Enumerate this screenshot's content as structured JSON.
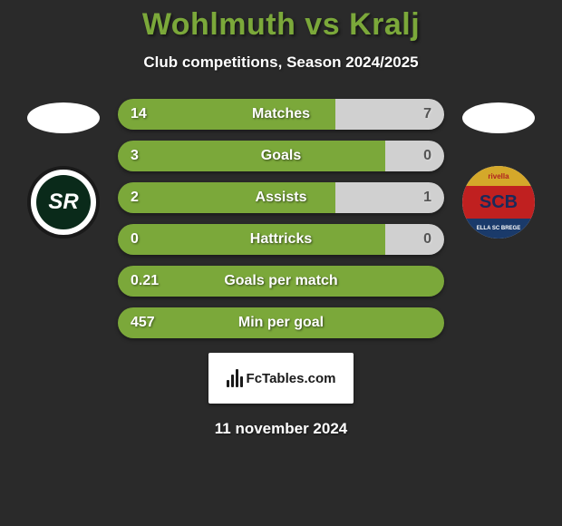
{
  "header": {
    "title": "Wohlmuth vs Kralj",
    "subtitle": "Club competitions, Season 2024/2025"
  },
  "colors": {
    "background": "#2a2a2a",
    "accent_left": "#7ba83a",
    "accent_right": "#d0d0d0",
    "title_color": "#7ba83a",
    "text_color": "#ffffff"
  },
  "stats": [
    {
      "label": "Matches",
      "left_value": "14",
      "right_value": "7",
      "left_pct": 66.7,
      "right_pct": 33.3
    },
    {
      "label": "Goals",
      "left_value": "3",
      "right_value": "0",
      "left_pct": 82,
      "right_pct": 18
    },
    {
      "label": "Assists",
      "left_value": "2",
      "right_value": "1",
      "left_pct": 66.7,
      "right_pct": 33.3
    },
    {
      "label": "Hattricks",
      "left_value": "0",
      "right_value": "0",
      "left_pct": 82,
      "right_pct": 18
    },
    {
      "label": "Goals per match",
      "left_value": "0.21",
      "right_value": "",
      "left_pct": 100,
      "right_pct": 0
    },
    {
      "label": "Min per goal",
      "left_value": "457",
      "right_value": "",
      "left_pct": 100,
      "right_pct": 0
    }
  ],
  "footer": {
    "brand": "FcTables.com",
    "date": "11 november 2024"
  },
  "left_team": {
    "logo_text": "SR"
  },
  "right_team": {
    "logo_top": "rivella",
    "logo_mid": "SCB",
    "logo_bot": "ELLA SC BREGE"
  }
}
